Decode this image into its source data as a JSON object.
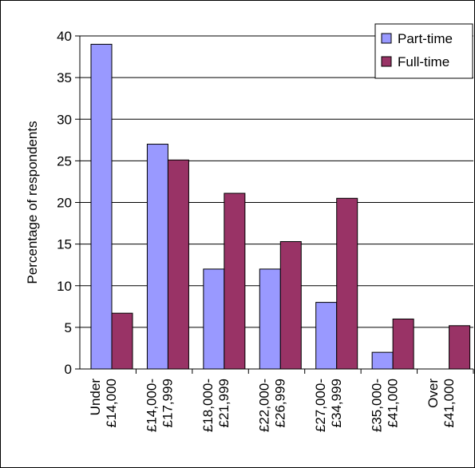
{
  "chart_data": {
    "type": "bar",
    "title": "",
    "xlabel": "",
    "ylabel": "Percentage of respondents",
    "ylim": [
      0,
      40
    ],
    "yticks": [
      0,
      5,
      10,
      15,
      20,
      25,
      30,
      35,
      40
    ],
    "grid": true,
    "legend_position": "top-right",
    "categories": [
      [
        "Under",
        "£14,000"
      ],
      [
        "£14,000-",
        "£17,999"
      ],
      [
        "£18,000-",
        "£21,999"
      ],
      [
        "£22,000-",
        "£26,999"
      ],
      [
        "£27,000-",
        "£34,999"
      ],
      [
        "£35,000-",
        "£41,000"
      ],
      [
        "Over",
        "£41,000"
      ]
    ],
    "series": [
      {
        "name": "Part-time",
        "color": "#9999ff",
        "values": [
          39,
          27,
          12,
          12,
          8,
          2,
          0
        ]
      },
      {
        "name": "Full-time",
        "color": "#993366",
        "values": [
          6.7,
          25.1,
          21.1,
          15.3,
          20.5,
          6,
          5.2
        ]
      }
    ]
  }
}
